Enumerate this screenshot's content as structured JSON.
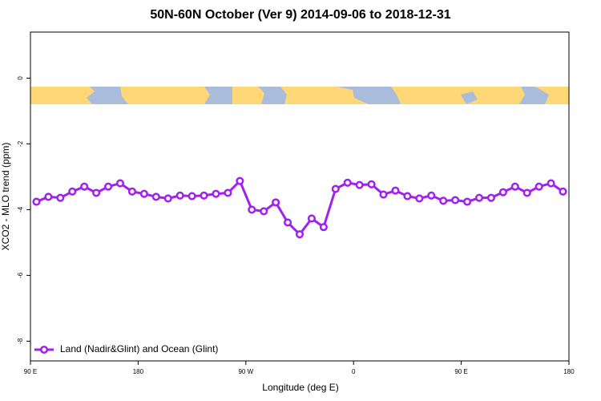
{
  "chart_data": {
    "type": "line",
    "title": "50N-60N October (Ver 9)   2014-09-06 to 2018-12-31",
    "xlabel": "Longitude (deg E)",
    "ylabel": "XCO2 - MLO trend (ppm)",
    "x": [
      95,
      105,
      115,
      125,
      135,
      145,
      155,
      165,
      175,
      185,
      195,
      205,
      215,
      225,
      235,
      245,
      255,
      265,
      275,
      285,
      295,
      305,
      315,
      325,
      335,
      345,
      355,
      365,
      375,
      385,
      395,
      405,
      415,
      425,
      435,
      445,
      455,
      465,
      475,
      485,
      495,
      505,
      515,
      525,
      535
    ],
    "series": [
      {
        "name": "Land (Nadir&Glint) and Ocean (Glint)",
        "color": "#a020f0",
        "values": [
          -3.76,
          -3.61,
          -3.64,
          -3.45,
          -3.3,
          -3.49,
          -3.3,
          -3.2,
          -3.45,
          -3.52,
          -3.61,
          -3.66,
          -3.57,
          -3.59,
          -3.57,
          -3.52,
          -3.49,
          -3.13,
          -4.0,
          -4.05,
          -3.78,
          -4.39,
          -4.75,
          -4.27,
          -4.53,
          -3.37,
          -3.18,
          -3.25,
          -3.23,
          -3.54,
          -3.42,
          -3.59,
          -3.66,
          -3.57,
          -3.73,
          -3.71,
          -3.76,
          -3.64,
          -3.64,
          -3.47,
          -3.3,
          -3.49,
          -3.3,
          -3.2,
          -3.45
        ]
      }
    ],
    "xlim": [
      90,
      540
    ],
    "xticks": [
      {
        "value": 90,
        "label": "90 E"
      },
      180,
      {
        "value": 270,
        "label": "90 W"
      },
      {
        "value": 360,
        "label": "0"
      },
      {
        "value": 450,
        "label": "90 E"
      },
      {
        "value": 540,
        "label": "180"
      }
    ],
    "ylim": [
      -8.6,
      1.4
    ],
    "yticks": [
      0,
      -2,
      -4,
      -6,
      -8
    ],
    "legend": "bottom-left"
  }
}
